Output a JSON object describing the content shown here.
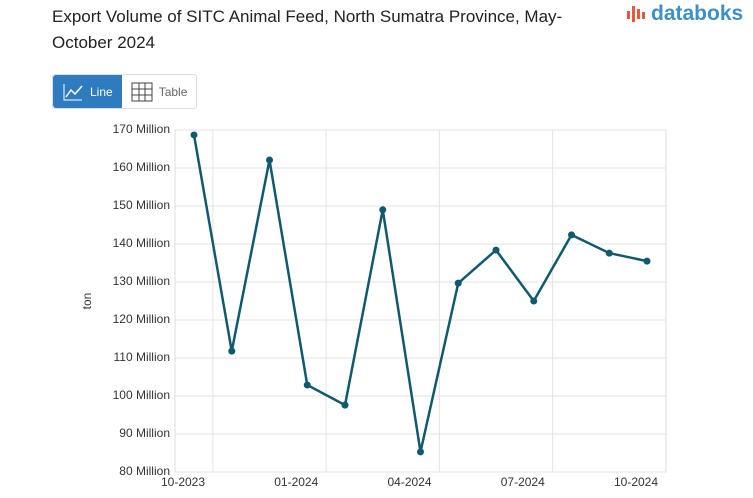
{
  "brand": "databoks",
  "view_buttons": [
    "Line",
    "Table"
  ],
  "chart_data": {
    "type": "line",
    "title": "Export Volume of SITC Animal Feed, North Sumatra Province, May-October 2024",
    "y_label": "ton",
    "categories": [
      "10-2023",
      null,
      null,
      "01-2024",
      null,
      null,
      "04-2024",
      null,
      null,
      "07-2024",
      null,
      null,
      "10-2024"
    ],
    "series": [
      {
        "name": "ton",
        "color": "#0f5a6c",
        "values": [
          168700000,
          111800000,
          162100000,
          102900000,
          97600000,
          149000000,
          85300000,
          129700000,
          138400000,
          125000000,
          142400000,
          137600000,
          135500000
        ]
      }
    ],
    "ylim": [
      80000000,
      170000000
    ],
    "yticks": [
      {
        "value": 80000000,
        "label": "80 Million"
      },
      {
        "value": 90000000,
        "label": "90 Million"
      },
      {
        "value": 100000000,
        "label": "100 Million"
      },
      {
        "value": 110000000,
        "label": "110 Million"
      },
      {
        "value": 120000000,
        "label": "120 Million"
      },
      {
        "value": 130000000,
        "label": "130 Million"
      },
      {
        "value": 140000000,
        "label": "140 Million"
      },
      {
        "value": 150000000,
        "label": "150 Million"
      },
      {
        "value": 160000000,
        "label": "160 Million"
      },
      {
        "value": 170000000,
        "label": "170 Million"
      }
    ],
    "grid": true
  }
}
